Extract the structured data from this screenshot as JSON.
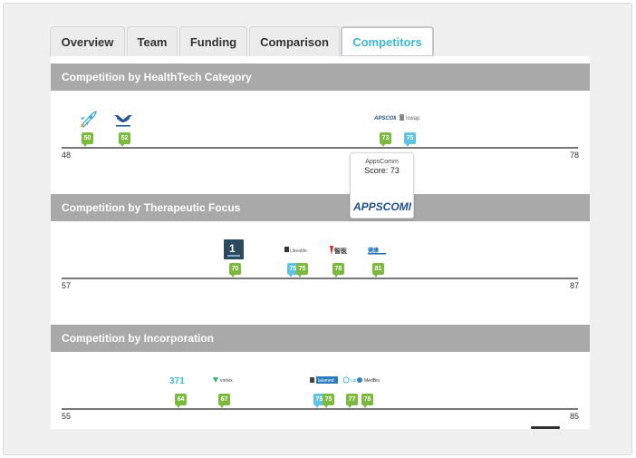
{
  "tabs": [
    {
      "label": "Overview",
      "active": false
    },
    {
      "label": "Team",
      "active": false
    },
    {
      "label": "Funding",
      "active": false
    },
    {
      "label": "Comparison",
      "active": false
    },
    {
      "label": "Competitors",
      "active": true
    }
  ],
  "colors": {
    "header_bg": "#a9a9a9",
    "marker_green": "#7cba3f",
    "marker_blue": "#5fc3e4",
    "active_tab_text": "#3bb6d6"
  },
  "sections": [
    {
      "title": "Competition by HealthTech Category",
      "min": "48",
      "max": "78",
      "markers": [
        {
          "value": "50",
          "color": "green",
          "logo": "rocket-icon"
        },
        {
          "value": "52",
          "color": "green",
          "logo": "motorfit-logo"
        },
        {
          "value": "73",
          "color": "green",
          "logo": "appscomm-logo"
        },
        {
          "value": "75",
          "color": "blue",
          "logo": "iswap-logo"
        }
      ],
      "tooltip": {
        "name": "AppsComm",
        "score": "Score: 73",
        "logo_text": "APPSCOMM"
      }
    },
    {
      "title": "Competition by Therapeutic Focus",
      "min": "57",
      "max": "87",
      "markers": [
        {
          "value": "70",
          "color": "green",
          "logo": "one-drug-logo"
        },
        {
          "value": "75",
          "color": "blue",
          "logo": "likeable-logo"
        },
        {
          "value": "75",
          "color": "green",
          "logo": "likeable-logo"
        },
        {
          "value": "78",
          "color": "green",
          "logo": "zhiyi-logo"
        },
        {
          "value": "81",
          "color": "green",
          "logo": "cn-health-logo"
        }
      ]
    },
    {
      "title": "Competition by Incorporation",
      "min": "55",
      "max": "85",
      "markers": [
        {
          "value": "64",
          "color": "green",
          "logo": "a371-logo"
        },
        {
          "value": "67",
          "color": "green",
          "logo": "vortex-logo"
        },
        {
          "value": "75",
          "color": "blue",
          "logo": "lalamed-logo"
        },
        {
          "value": "75",
          "color": "green",
          "logo": "lalamed-logo"
        },
        {
          "value": "77",
          "color": "green",
          "logo": "care-logo"
        },
        {
          "value": "78",
          "color": "green",
          "logo": "medbox-logo"
        }
      ]
    }
  ]
}
